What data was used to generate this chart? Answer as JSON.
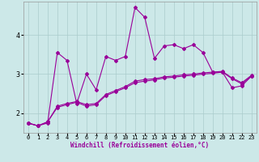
{
  "xlabel": "Windchill (Refroidissement éolien,°C)",
  "x_ticks": [
    0,
    1,
    2,
    3,
    4,
    5,
    6,
    7,
    8,
    9,
    10,
    11,
    12,
    13,
    14,
    15,
    16,
    17,
    18,
    19,
    20,
    21,
    22,
    23
  ],
  "y_ticks": [
    2,
    3,
    4
  ],
  "ylim": [
    1.5,
    4.85
  ],
  "xlim": [
    -0.5,
    23.5
  ],
  "bg_color": "#cce8e8",
  "line_color": "#990099",
  "grid_color": "#aacccc",
  "series1_y": [
    1.75,
    1.68,
    1.75,
    3.55,
    3.35,
    2.25,
    3.0,
    2.6,
    3.45,
    3.35,
    3.45,
    4.7,
    4.45,
    3.4,
    3.72,
    3.75,
    3.65,
    3.75,
    3.55,
    3.05,
    3.05,
    2.65,
    2.7,
    2.95
  ],
  "series2_y": [
    1.75,
    1.68,
    1.78,
    2.15,
    2.22,
    2.28,
    2.18,
    2.22,
    2.45,
    2.55,
    2.65,
    2.78,
    2.82,
    2.85,
    2.9,
    2.92,
    2.95,
    2.97,
    3.0,
    3.02,
    3.05,
    2.88,
    2.75,
    2.95
  ],
  "series3_y": [
    1.75,
    1.68,
    1.78,
    2.18,
    2.25,
    2.3,
    2.22,
    2.25,
    2.48,
    2.58,
    2.68,
    2.82,
    2.86,
    2.88,
    2.93,
    2.95,
    2.98,
    3.0,
    3.03,
    3.05,
    3.07,
    2.9,
    2.78,
    2.97
  ],
  "marker": "D",
  "markersize": 2.0,
  "linewidth": 0.8,
  "tick_fontsize": 5.0,
  "xlabel_fontsize": 5.5
}
